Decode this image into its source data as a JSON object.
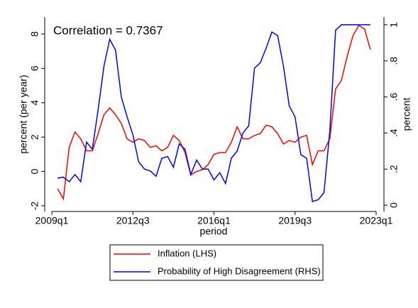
{
  "chart_data": {
    "type": "line",
    "annotation": "Correlation = 0.7367",
    "x_label": "period",
    "y_label": "percent (per year)",
    "y2_label": "percent",
    "x": [
      "2009q2",
      "2009q3",
      "2009q4",
      "2010q1",
      "2010q2",
      "2010q3",
      "2010q4",
      "2011q1",
      "2011q2",
      "2011q3",
      "2011q4",
      "2012q1",
      "2012q2",
      "2012q3",
      "2012q4",
      "2013q1",
      "2013q2",
      "2013q3",
      "2013q4",
      "2014q1",
      "2014q2",
      "2014q3",
      "2014q4",
      "2015q1",
      "2015q2",
      "2015q3",
      "2015q4",
      "2016q1",
      "2016q2",
      "2016q3",
      "2016q4",
      "2017q1",
      "2017q2",
      "2017q3",
      "2017q4",
      "2018q1",
      "2018q2",
      "2018q3",
      "2018q4",
      "2019q1",
      "2019q2",
      "2019q3",
      "2019q4",
      "2020q1",
      "2020q2",
      "2020q3",
      "2020q4",
      "2021q1",
      "2021q2",
      "2021q3",
      "2021q4",
      "2022q1",
      "2022q2",
      "2022q3",
      "2022q4"
    ],
    "xlim": [
      "2009q1",
      "2023q1"
    ],
    "xticks": [
      "2009q1",
      "2012q3",
      "2016q1",
      "2019q3",
      "2023q1"
    ],
    "ylim": [
      -2.33,
      8.99
    ],
    "yticks": [
      -2,
      0,
      2,
      4,
      6,
      8
    ],
    "y2lim": [
      -0.035,
      1.043
    ],
    "y2ticks": [
      0,
      {
        "value": 0.2,
        "label": ".2"
      },
      {
        "value": 0.4,
        "label": ".4"
      },
      {
        "value": 0.6,
        "label": ".6"
      },
      {
        "value": 0.8,
        "label": ".8"
      },
      1
    ],
    "grid": false,
    "series": [
      {
        "name": "Inflation (LHS)",
        "color": "#ff0000",
        "axis": "y",
        "values": [
          -1.0,
          -1.6,
          1.4,
          2.3,
          1.9,
          1.2,
          1.2,
          2.2,
          3.3,
          3.7,
          3.3,
          2.8,
          1.9,
          1.7,
          1.9,
          1.8,
          1.4,
          1.5,
          1.2,
          1.4,
          2.1,
          1.8,
          1.1,
          -0.2,
          0.0,
          0.1,
          0.4,
          1.0,
          1.1,
          1.1,
          1.7,
          2.6,
          1.9,
          1.9,
          2.1,
          2.2,
          2.7,
          2.6,
          2.2,
          1.6,
          1.8,
          1.7,
          2.0,
          2.1,
          0.4,
          1.2,
          1.2,
          1.9,
          4.8,
          5.3,
          6.7,
          7.9,
          8.5,
          8.3,
          7.1
        ]
      },
      {
        "name": "Probability of High Disagreement (RHS)",
        "color": "#0000ff",
        "axis": "y2",
        "values": [
          0.15,
          0.155,
          0.13,
          0.17,
          0.13,
          0.35,
          0.31,
          0.53,
          0.77,
          0.92,
          0.86,
          0.6,
          0.49,
          0.39,
          0.24,
          0.2,
          0.19,
          0.16,
          0.26,
          0.27,
          0.21,
          0.34,
          0.31,
          0.17,
          0.25,
          0.2,
          0.2,
          0.14,
          0.18,
          0.12,
          0.26,
          0.3,
          0.4,
          0.44,
          0.76,
          0.79,
          0.87,
          0.96,
          0.94,
          0.77,
          0.55,
          0.49,
          0.28,
          0.26,
          0.02,
          0.03,
          0.07,
          0.41,
          0.97,
          1.0,
          1.0,
          1.0,
          1.0,
          1.0,
          1.0
        ]
      }
    ]
  }
}
